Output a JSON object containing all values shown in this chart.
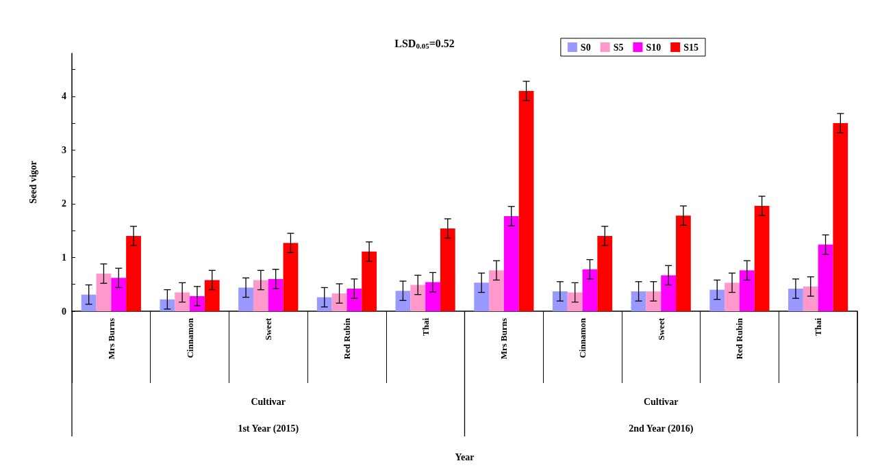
{
  "chart_data": {
    "type": "bar",
    "ylabel": "Seed vigor",
    "annotations": [
      "LSD$_{0.05}$=0.52",
      "Cultivar",
      "Cultivar",
      "1st Year (2015)",
      "2nd Year (2016)",
      "Year"
    ],
    "categories": [
      "Mrs Burns",
      "Cinnamon",
      "Sweet",
      "Red Rubin",
      "Thai",
      "Mrs Burns",
      "Cinnamon",
      "Sweet",
      "Red Rubin",
      "Thai"
    ],
    "series": [
      {
        "name": "S0",
        "color": "#9999ff",
        "values": [
          0.31,
          0.22,
          0.44,
          0.26,
          0.38,
          0.53,
          0.37,
          0.37,
          0.4,
          0.42
        ],
        "errors": [
          0.18,
          0.18,
          0.18,
          0.18,
          0.18,
          0.18,
          0.18,
          0.18,
          0.18,
          0.18
        ]
      },
      {
        "name": "S5",
        "color": "#ff99cc",
        "values": [
          0.7,
          0.35,
          0.58,
          0.33,
          0.49,
          0.76,
          0.35,
          0.37,
          0.53,
          0.46
        ],
        "errors": [
          0.18,
          0.18,
          0.18,
          0.18,
          0.18,
          0.18,
          0.18,
          0.18,
          0.18,
          0.18
        ]
      },
      {
        "name": "S10",
        "color": "#ff00ff",
        "values": [
          0.62,
          0.28,
          0.6,
          0.42,
          0.54,
          1.77,
          0.78,
          0.67,
          0.76,
          1.24
        ],
        "errors": [
          0.18,
          0.18,
          0.18,
          0.18,
          0.18,
          0.18,
          0.18,
          0.18,
          0.18,
          0.18
        ]
      },
      {
        "name": "S15",
        "color": "#ff0000",
        "values": [
          1.4,
          0.58,
          1.27,
          1.11,
          1.54,
          4.1,
          1.4,
          1.78,
          1.96,
          3.5
        ],
        "errors": [
          0.18,
          0.18,
          0.18,
          0.18,
          0.18,
          0.18,
          0.18,
          0.18,
          0.18,
          0.18
        ]
      }
    ],
    "ylim": [
      0,
      4.8
    ],
    "yticks": [
      0,
      {
        "value": 0.5,
        "label": null
      },
      1,
      {
        "value": 1.5,
        "label": null
      },
      2,
      {
        "value": 2.5,
        "label": null
      },
      3,
      {
        "value": 3.5,
        "label": null
      },
      4,
      {
        "value": 4.5,
        "label": null
      }
    ],
    "grid": false,
    "legend": "top right"
  }
}
